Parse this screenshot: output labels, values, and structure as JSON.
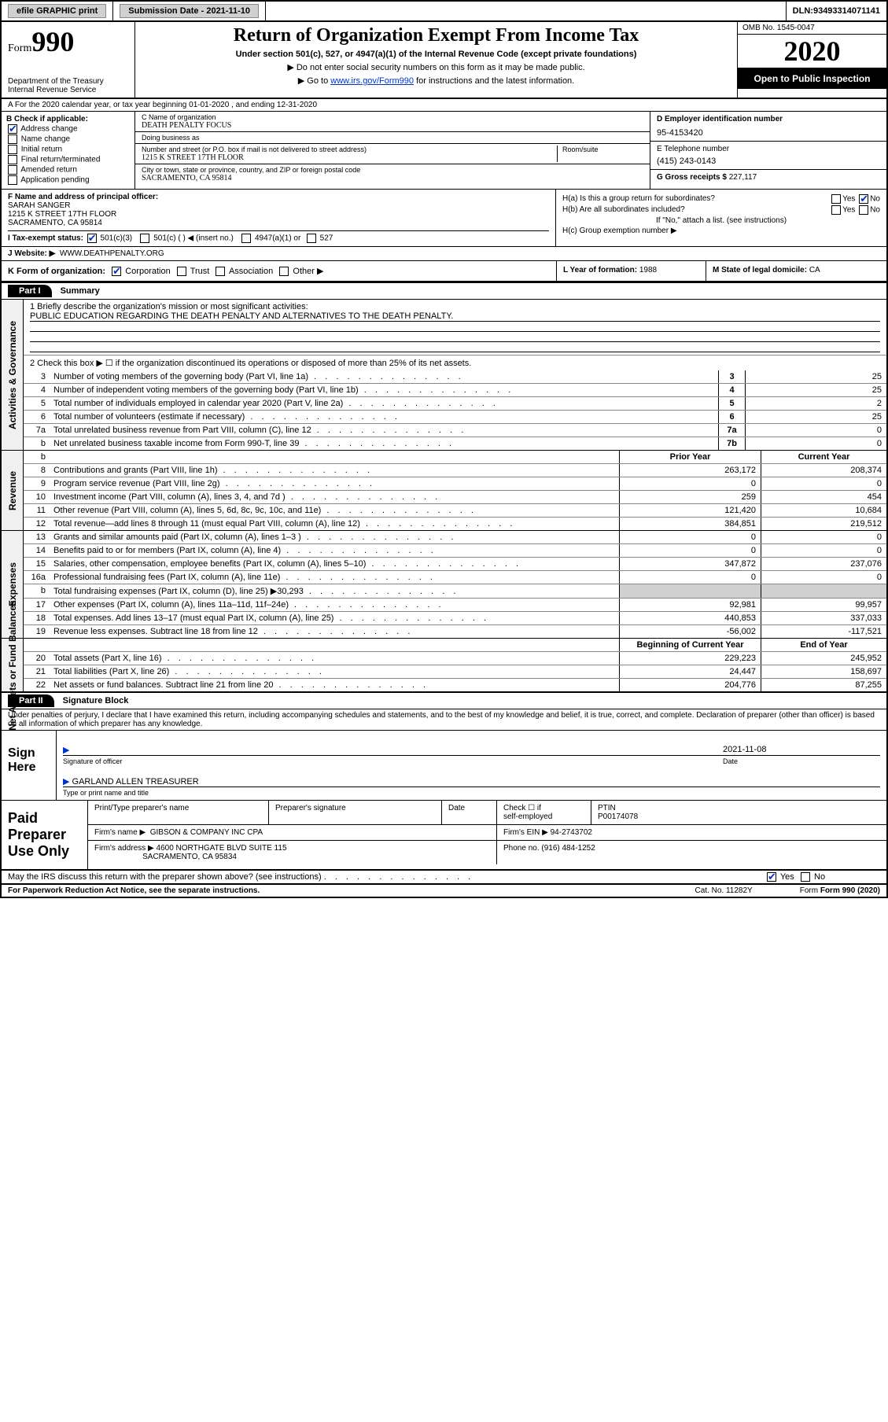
{
  "topbar": {
    "efile": "efile GRAPHIC print",
    "subdate_lbl": "Submission Date - ",
    "subdate": "2021-11-10",
    "dln_lbl": "DLN: ",
    "dln": "93493314071141"
  },
  "header": {
    "form_word": "Form",
    "form_num": "990",
    "dept": "Department of the Treasury\nInternal Revenue Service",
    "title": "Return of Organization Exempt From Income Tax",
    "sub": "Under section 501(c), 527, or 4947(a)(1) of the Internal Revenue Code (except private foundations)",
    "arrow1": "▶ Do not enter social security numbers on this form as it may be made public.",
    "arrow2_pre": "▶ Go to ",
    "arrow2_link": "www.irs.gov/Form990",
    "arrow2_post": " for instructions and the latest information.",
    "omb": "OMB No. 1545-0047",
    "year": "2020",
    "inspect": "Open to Public Inspection"
  },
  "rowA": "A  For the 2020 calendar year, or tax year beginning 01-01-2020    , and ending 12-31-2020",
  "B": {
    "lbl": "B Check if applicable:",
    "items": [
      "Address change",
      "Name change",
      "Initial return",
      "Final return/terminated",
      "Amended return",
      "Application pending"
    ],
    "checked": [
      true,
      false,
      false,
      false,
      false,
      false
    ]
  },
  "C": {
    "name_lbl": "C Name of organization",
    "name": "DEATH PENALTY FOCUS",
    "dba_lbl": "Doing business as",
    "dba": "",
    "addr_lbl": "Number and street (or P.O. box if mail is not delivered to street address)",
    "room_lbl": "Room/suite",
    "addr": "1215 K STREET 17TH FLOOR",
    "city_lbl": "City or town, state or province, country, and ZIP or foreign postal code",
    "city": "SACRAMENTO, CA  95814"
  },
  "D": {
    "lbl": "D Employer identification number",
    "val": "95-4153420"
  },
  "E": {
    "lbl": "E Telephone number",
    "val": "(415) 243-0143"
  },
  "G": {
    "lbl": "G Gross receipts $ ",
    "val": "227,117"
  },
  "F": {
    "lbl": "F  Name and address of principal officer:",
    "name": "SARAH SANGER",
    "addr1": "1215 K STREET 17TH FLOOR",
    "addr2": "SACRAMENTO, CA  95814"
  },
  "H": {
    "a_lbl": "H(a)  Is this a group return for subordinates?",
    "b_lbl": "H(b)  Are all subordinates included?",
    "note": "If \"No,\" attach a list. (see instructions)",
    "c_lbl": "H(c)  Group exemption number ▶",
    "yes": "Yes",
    "no": "No"
  },
  "I": {
    "lbl": "I  Tax-exempt status:",
    "o1": "501(c)(3)",
    "o2": "501(c) (   ) ◀ (insert no.)",
    "o3": "4947(a)(1) or",
    "o4": "527"
  },
  "J": {
    "lbl": "J  Website: ▶",
    "val": "WWW.DEATHPENALTY.ORG"
  },
  "K": {
    "lbl": "K Form of organization:",
    "o1": "Corporation",
    "o2": "Trust",
    "o3": "Association",
    "o4": "Other ▶",
    "L_lbl": "L Year of formation: ",
    "L_val": "1988",
    "M_lbl": "M State of legal domicile: ",
    "M_val": "CA"
  },
  "part1": {
    "tag": "Part I",
    "title": "Summary"
  },
  "summary": {
    "l1_lbl": "1  Briefly describe the organization's mission or most significant activities:",
    "l1_val": "PUBLIC EDUCATION REGARDING THE DEATH PENALTY AND ALTERNATIVES TO THE DEATH PENALTY.",
    "l2": "2   Check this box ▶ ☐  if the organization discontinued its operations or disposed of more than 25% of its net assets.",
    "rows": [
      {
        "n": "3",
        "d": "Number of voting members of the governing body (Part VI, line 1a)",
        "box": "3",
        "v": "25"
      },
      {
        "n": "4",
        "d": "Number of independent voting members of the governing body (Part VI, line 1b)",
        "box": "4",
        "v": "25"
      },
      {
        "n": "5",
        "d": "Total number of individuals employed in calendar year 2020 (Part V, line 2a)",
        "box": "5",
        "v": "2"
      },
      {
        "n": "6",
        "d": "Total number of volunteers (estimate if necessary)",
        "box": "6",
        "v": "25"
      },
      {
        "n": "7a",
        "d": "Total unrelated business revenue from Part VIII, column (C), line 12",
        "box": "7a",
        "v": "0"
      },
      {
        "n": "b",
        "d": "Net unrelated business taxable income from Form 990-T, line 39",
        "box": "7b",
        "v": "0"
      }
    ]
  },
  "twocol_hdr": {
    "prior": "Prior Year",
    "current": "Current Year"
  },
  "revenue": [
    {
      "n": "8",
      "d": "Contributions and grants (Part VIII, line 1h)",
      "p": "263,172",
      "c": "208,374"
    },
    {
      "n": "9",
      "d": "Program service revenue (Part VIII, line 2g)",
      "p": "0",
      "c": "0"
    },
    {
      "n": "10",
      "d": "Investment income (Part VIII, column (A), lines 3, 4, and 7d )",
      "p": "259",
      "c": "454"
    },
    {
      "n": "11",
      "d": "Other revenue (Part VIII, column (A), lines 5, 6d, 8c, 9c, 10c, and 11e)",
      "p": "121,420",
      "c": "10,684"
    },
    {
      "n": "12",
      "d": "Total revenue—add lines 8 through 11 (must equal Part VIII, column (A), line 12)",
      "p": "384,851",
      "c": "219,512"
    }
  ],
  "expenses": [
    {
      "n": "13",
      "d": "Grants and similar amounts paid (Part IX, column (A), lines 1–3 )",
      "p": "0",
      "c": "0"
    },
    {
      "n": "14",
      "d": "Benefits paid to or for members (Part IX, column (A), line 4)",
      "p": "0",
      "c": "0"
    },
    {
      "n": "15",
      "d": "Salaries, other compensation, employee benefits (Part IX, column (A), lines 5–10)",
      "p": "347,872",
      "c": "237,076"
    },
    {
      "n": "16a",
      "d": "Professional fundraising fees (Part IX, column (A), line 11e)",
      "p": "0",
      "c": "0"
    },
    {
      "n": "b",
      "d": "Total fundraising expenses (Part IX, column (D), line 25) ▶30,293",
      "p": "grey",
      "c": "grey"
    },
    {
      "n": "17",
      "d": "Other expenses (Part IX, column (A), lines 11a–11d, 11f–24e)",
      "p": "92,981",
      "c": "99,957"
    },
    {
      "n": "18",
      "d": "Total expenses. Add lines 13–17 (must equal Part IX, column (A), line 25)",
      "p": "440,853",
      "c": "337,033"
    },
    {
      "n": "19",
      "d": "Revenue less expenses. Subtract line 18 from line 12",
      "p": "-56,002",
      "c": "-117,521"
    }
  ],
  "netassets_hdr": {
    "beg": "Beginning of Current Year",
    "end": "End of Year"
  },
  "netassets": [
    {
      "n": "20",
      "d": "Total assets (Part X, line 16)",
      "p": "229,223",
      "c": "245,952"
    },
    {
      "n": "21",
      "d": "Total liabilities (Part X, line 26)",
      "p": "24,447",
      "c": "158,697"
    },
    {
      "n": "22",
      "d": "Net assets or fund balances. Subtract line 21 from line 20",
      "p": "204,776",
      "c": "87,255"
    }
  ],
  "part2": {
    "tag": "Part II",
    "title": "Signature Block"
  },
  "sig": {
    "decl": "Under penalties of perjury, I declare that I have examined this return, including accompanying schedules and statements, and to the best of my knowledge and belief, it is true, correct, and complete. Declaration of preparer (other than officer) is based on all information of which preparer has any knowledge.",
    "sign_here": "Sign Here",
    "sig_of_officer": "Signature of officer",
    "date": "Date",
    "date_val": "2021-11-08",
    "name": "GARLAND ALLEN  TREASURER",
    "name_lbl": "Type or print name and title"
  },
  "prep": {
    "lbl": "Paid Preparer Use Only",
    "h1": "Print/Type preparer's name",
    "h2": "Preparer's signature",
    "h3": "Date",
    "h4_a": "Check ☐ if",
    "h4_b": "self-employed",
    "h5": "PTIN",
    "ptin": "P00174078",
    "firm_lbl": "Firm's name   ▶",
    "firm": "GIBSON & COMPANY INC CPA",
    "ein_lbl": "Firm's EIN ▶ ",
    "ein": "94-2743702",
    "addr_lbl": "Firm's address ▶",
    "addr1": "4600 NORTHGATE BLVD SUITE 115",
    "addr2": "SACRAMENTO, CA  95834",
    "phone_lbl": "Phone no. ",
    "phone": "(916) 484-1252",
    "irs_q": "May the IRS discuss this return with the preparer shown above? (see instructions)"
  },
  "footer": {
    "paperwork": "For Paperwork Reduction Act Notice, see the separate instructions.",
    "cat": "Cat. No. 11282Y",
    "form": "Form 990 (2020)"
  },
  "vtabs": {
    "gov": "Activities & Governance",
    "rev": "Revenue",
    "exp": "Expenses",
    "net": "Net Assets or Fund Balances"
  }
}
